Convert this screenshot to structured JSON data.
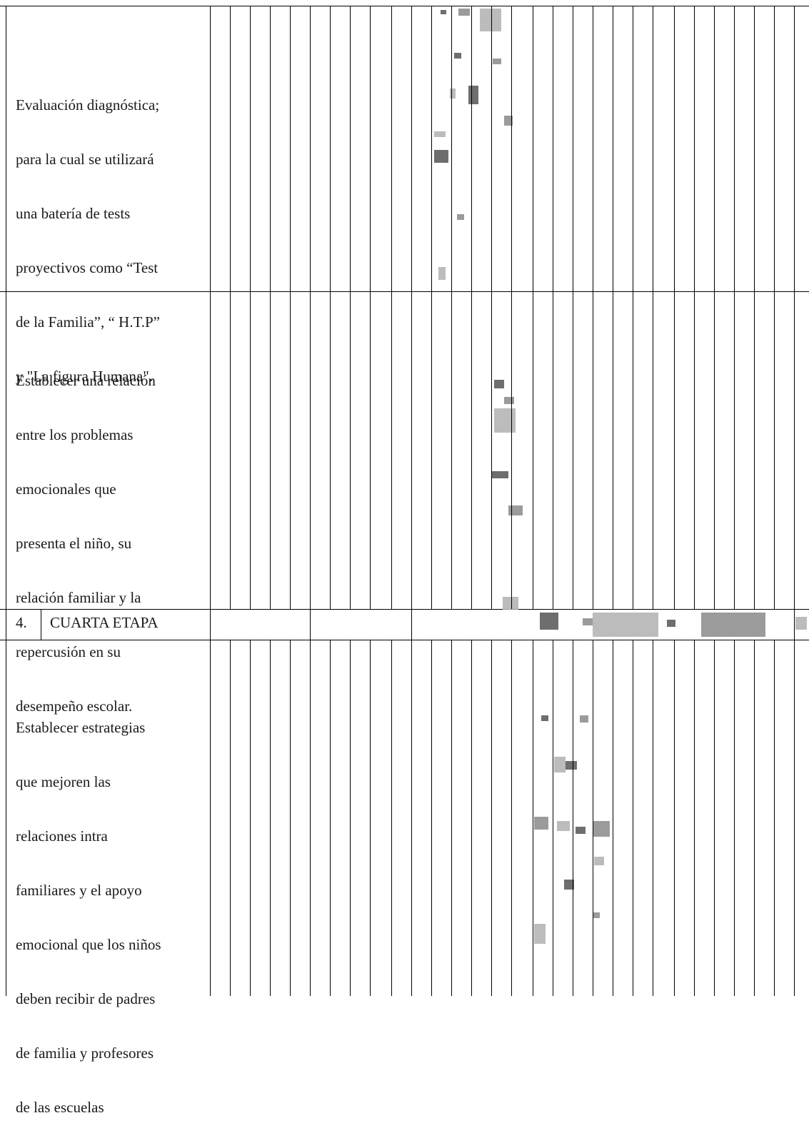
{
  "rows": [
    {
      "lines": [
        "Evaluación diagnóstica;",
        "para la cual se utilizará",
        "una batería de tests",
        "proyectivos como “Test",
        "de la Familia”, “ H.T.P”",
        "y \"La figura Humana\"."
      ]
    },
    {
      "lines": [
        "Establecer una relación",
        "entre los problemas",
        "emocionales que",
        "presenta el niño, su",
        "relación familiar y la",
        "repercusión en su",
        "desempeño escolar."
      ]
    },
    {
      "stage_number": "4.",
      "stage_title": "CUARTA ETAPA"
    },
    {
      "lines": [
        " Establecer estrategias",
        "que mejoren las",
        "relaciones intra",
        "familiares y el apoyo",
        "emocional que los niños",
        "deben recibir de padres",
        "de familia y profesores",
        "de las escuelas"
      ]
    }
  ]
}
